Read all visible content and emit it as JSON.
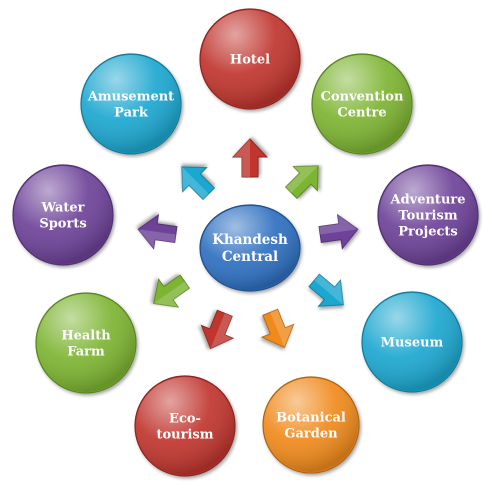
{
  "center": {
    "label_lines": [
      "Khandesh",
      "Central"
    ],
    "color": "#2f6fc0"
  },
  "nodes": [
    {
      "id": "hotel",
      "label_lines": [
        "Hotel"
      ],
      "color": "#c0352e",
      "icon": "red-arrow-icon"
    },
    {
      "id": "convention-centre",
      "label_lines": [
        "Convention",
        "Centre"
      ],
      "color": "#7db431",
      "icon": "green-arrow-icon"
    },
    {
      "id": "adventure-tourism-projects",
      "label_lines": [
        "Adventure",
        "Tourism",
        "Projects"
      ],
      "color": "#6d4298",
      "icon": "purple-arrow-icon"
    },
    {
      "id": "museum",
      "label_lines": [
        "Museum"
      ],
      "color": "#1fa7d0",
      "icon": "cyan-arrow-icon"
    },
    {
      "id": "botanical-garden",
      "label_lines": [
        "Botanical",
        "Garden"
      ],
      "color": "#f08a1f",
      "icon": "orange-arrow-icon"
    },
    {
      "id": "eco-tourism",
      "label_lines": [
        "Eco-",
        "tourism"
      ],
      "color": "#c0352e",
      "icon": "red-arrow-icon"
    },
    {
      "id": "health-farm",
      "label_lines": [
        "Health",
        "Farm"
      ],
      "color": "#7db431",
      "icon": "green-arrow-icon"
    },
    {
      "id": "water-sports",
      "label_lines": [
        "Water",
        "Sports"
      ],
      "color": "#6d4298",
      "icon": "purple-arrow-icon"
    },
    {
      "id": "amusement-park",
      "label_lines": [
        "Amusement",
        "Park"
      ],
      "color": "#1fa7d0",
      "icon": "cyan-arrow-icon"
    }
  ]
}
